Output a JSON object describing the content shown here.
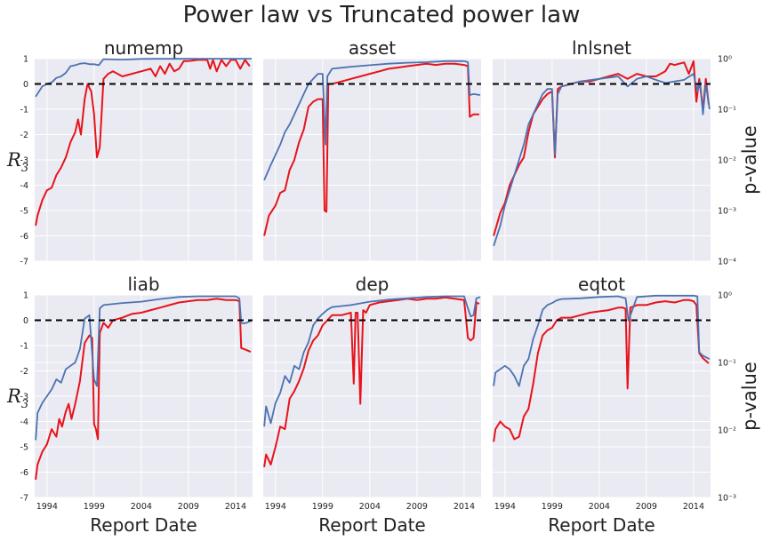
{
  "figure_title": "Power law vs Truncated power law",
  "colors": {
    "r_series": "#e8131b",
    "p_series": "#4c72b0",
    "panel_bg": "#eaeaf2",
    "grid": "#ffffff",
    "zero_line": "#000000"
  },
  "labels": {
    "left_axis": "R",
    "left_axis_sub": "3",
    "right_axis": "p-value",
    "x_axis": "Report Date"
  },
  "x_ticks": [
    "1994",
    "1999",
    "2004",
    "2009",
    "2014"
  ],
  "chart_data": [
    {
      "type": "line",
      "title": "numemp",
      "row": 0,
      "col": 0,
      "ylim": [
        -7,
        1
      ],
      "yticks": [
        "1",
        "0",
        "-1",
        "-2",
        "-3",
        "-4",
        "-5",
        "-6",
        "-7"
      ],
      "plog": [
        -4,
        0
      ],
      "pticks": [],
      "xlim": [
        1992.7,
        2015.8
      ],
      "series": [
        {
          "role": "R",
          "x": [
            1992.8,
            1993,
            1993.5,
            1994,
            1994.5,
            1995,
            1995.5,
            1996,
            1996.5,
            1997,
            1997.3,
            1997.6,
            1998,
            1998.3,
            1998.7,
            1999,
            1999.3,
            1999.6,
            2000,
            2000.5,
            2001,
            2002,
            2003,
            2004,
            2005,
            2005.5,
            2006,
            2006.5,
            2007,
            2007.5,
            2008,
            2008.5,
            2009,
            2010,
            2011,
            2011.3,
            2011.6,
            2012,
            2012.5,
            2013,
            2013.5,
            2014,
            2014.5,
            2015,
            2015.5
          ],
          "y": [
            -5.6,
            -5.2,
            -4.6,
            -4.2,
            -4.1,
            -3.6,
            -3.3,
            -2.9,
            -2.3,
            -1.9,
            -1.4,
            -2.0,
            -0.6,
            0.0,
            -0.3,
            -1.2,
            -2.9,
            -2.5,
            0.2,
            0.4,
            0.5,
            0.3,
            0.4,
            0.5,
            0.6,
            0.3,
            0.7,
            0.4,
            0.8,
            0.5,
            0.6,
            0.9,
            0.9,
            0.95,
            0.95,
            0.6,
            0.95,
            0.5,
            0.95,
            0.7,
            0.95,
            0.95,
            0.6,
            0.95,
            0.7
          ]
        },
        {
          "role": "p",
          "x": [
            1992.8,
            1993.5,
            1994,
            1994.5,
            1995,
            1995.5,
            1996,
            1996.5,
            1997,
            1997.5,
            1998,
            1998.5,
            1999,
            1999.5,
            2000,
            2002,
            2004,
            2006,
            2008,
            2010,
            2012,
            2014,
            2015.7
          ],
          "y": [
            -0.75,
            -0.55,
            -0.5,
            -0.47,
            -0.38,
            -0.35,
            -0.28,
            -0.15,
            -0.13,
            -0.1,
            -0.09,
            -0.11,
            -0.11,
            -0.13,
            -0.01,
            -0.02,
            -0.005,
            -0.004,
            -0.003,
            -0.002,
            -0.002,
            -0.002,
            -0.002
          ]
        }
      ]
    },
    {
      "type": "line",
      "title": "asset",
      "row": 0,
      "col": 1,
      "ylim": [
        -7,
        1
      ],
      "yticks": [],
      "plog": [
        -4,
        0
      ],
      "pticks": [],
      "xlim": [
        1992.7,
        2015.8
      ],
      "series": [
        {
          "role": "R",
          "x": [
            1992.8,
            1993.3,
            1994,
            1994.5,
            1995,
            1995.5,
            1996,
            1996.5,
            1997,
            1997.5,
            1998,
            1998.5,
            1999,
            1999.2,
            1999.4,
            1999.6,
            2000,
            2001,
            2002,
            2003,
            2004,
            2005,
            2006,
            2007,
            2008,
            2009,
            2010,
            2011,
            2012,
            2013,
            2014,
            2014.4,
            2014.6,
            2015,
            2015.6
          ],
          "y": [
            -6.0,
            -5.2,
            -4.8,
            -4.3,
            -4.2,
            -3.4,
            -3.0,
            -2.3,
            -1.8,
            -0.9,
            -0.7,
            -0.6,
            -0.6,
            -5.0,
            -5.05,
            0.0,
            0.0,
            0.1,
            0.2,
            0.3,
            0.4,
            0.5,
            0.6,
            0.65,
            0.7,
            0.75,
            0.8,
            0.75,
            0.8,
            0.8,
            0.75,
            0.7,
            -1.3,
            -1.2,
            -1.2
          ]
        },
        {
          "role": "p",
          "x": [
            1992.8,
            1993.5,
            1994,
            1994.5,
            1995,
            1995.5,
            1996,
            1996.5,
            1997,
            1997.5,
            1998,
            1998.5,
            1999,
            1999.3,
            1999.5,
            2000,
            2002,
            2004,
            2006,
            2008,
            2010,
            2012,
            2014,
            2014.4,
            2014.6,
            2015,
            2015.7
          ],
          "y": [
            -2.4,
            -2.1,
            -1.9,
            -1.7,
            -1.45,
            -1.3,
            -1.1,
            -0.9,
            -0.7,
            -0.5,
            -0.4,
            -0.3,
            -0.3,
            -1.7,
            -0.35,
            -0.2,
            -0.16,
            -0.13,
            -0.1,
            -0.08,
            -0.07,
            -0.05,
            -0.05,
            -0.07,
            -0.72,
            -0.7,
            -0.72
          ]
        }
      ]
    },
    {
      "type": "line",
      "title": "lnlsnet",
      "row": 0,
      "col": 2,
      "ylim": [
        -7,
        1
      ],
      "yticks": [],
      "plog": [
        -4,
        0
      ],
      "pticks": [
        "10⁰",
        "10⁻¹",
        "10⁻²",
        "10⁻³",
        "10⁻⁴"
      ],
      "xlim": [
        1992.7,
        2015.8
      ],
      "series": [
        {
          "role": "R",
          "x": [
            1992.8,
            1993.5,
            1994,
            1994.5,
            1995,
            1995.5,
            1996,
            1996.5,
            1997,
            1997.5,
            1998,
            1998.5,
            1999,
            1999.3,
            1999.6,
            2000,
            2001,
            2002,
            2003,
            2004,
            2005,
            2006,
            2007,
            2008,
            2009,
            2010,
            2011,
            2011.5,
            2012,
            2012.5,
            2013,
            2013.5,
            2014,
            2014.3,
            2014.6,
            2015,
            2015.3,
            2015.6
          ],
          "y": [
            -6.0,
            -5.1,
            -4.7,
            -4.0,
            -3.6,
            -3.2,
            -2.9,
            -1.9,
            -1.2,
            -0.9,
            -0.6,
            -0.4,
            -0.3,
            -2.9,
            -0.2,
            -0.1,
            0.0,
            0.1,
            0.1,
            0.2,
            0.3,
            0.4,
            0.2,
            0.4,
            0.3,
            0.3,
            0.5,
            0.8,
            0.75,
            0.8,
            0.85,
            0.4,
            0.9,
            -0.7,
            0.2,
            -1.0,
            0.2,
            -0.8
          ]
        },
        {
          "role": "p",
          "x": [
            1992.8,
            1993.5,
            1994,
            1994.5,
            1995,
            1995.5,
            1996,
            1996.5,
            1997,
            1997.5,
            1998,
            1998.5,
            1999,
            1999.3,
            1999.6,
            2000,
            2002,
            2004,
            2006,
            2007,
            2008,
            2009,
            2010,
            2011,
            2012,
            2013,
            2014,
            2014.4,
            2014.7,
            2015,
            2015.3,
            2015.7
          ],
          "y": [
            -3.7,
            -3.3,
            -2.9,
            -2.6,
            -2.3,
            -2.0,
            -1.7,
            -1.3,
            -1.1,
            -0.9,
            -0.7,
            -0.6,
            -0.6,
            -1.9,
            -0.7,
            -0.55,
            -0.45,
            -0.4,
            -0.35,
            -0.55,
            -0.4,
            -0.35,
            -0.42,
            -0.48,
            -0.45,
            -0.42,
            -0.3,
            -0.65,
            -0.45,
            -1.1,
            -0.5,
            -1.0
          ]
        }
      ]
    },
    {
      "type": "line",
      "title": "liab",
      "row": 1,
      "col": 0,
      "ylim": [
        -7,
        1
      ],
      "yticks": [
        "1",
        "0",
        "-1",
        "-2",
        "-3",
        "-4",
        "-5",
        "-6",
        "-7"
      ],
      "plog": [
        -3,
        0
      ],
      "pticks": [],
      "xlim": [
        1992.7,
        2015.8
      ],
      "series": [
        {
          "role": "R",
          "x": [
            1992.8,
            1993,
            1993.5,
            1994,
            1994.5,
            1995,
            1995.3,
            1995.6,
            1996,
            1996.3,
            1996.6,
            1997,
            1997.5,
            1998,
            1998.5,
            1998.8,
            1999,
            1999.2,
            1999.4,
            1999.6,
            2000,
            2000.5,
            2001,
            2002,
            2003,
            2004,
            2005,
            2006,
            2007,
            2008,
            2009,
            2010,
            2011,
            2012,
            2013,
            2014,
            2014.4,
            2014.6,
            2015,
            2015.6
          ],
          "y": [
            -6.3,
            -5.7,
            -5.2,
            -4.9,
            -4.3,
            -4.6,
            -3.9,
            -4.2,
            -3.6,
            -3.3,
            -3.9,
            -3.3,
            -2.4,
            -0.9,
            -0.6,
            -0.7,
            -4.1,
            -4.3,
            -4.7,
            -0.5,
            -0.1,
            -0.3,
            0.0,
            0.1,
            0.25,
            0.3,
            0.4,
            0.5,
            0.6,
            0.7,
            0.75,
            0.8,
            0.8,
            0.85,
            0.8,
            0.8,
            0.75,
            -1.1,
            -1.15,
            -1.25
          ]
        },
        {
          "role": "p",
          "x": [
            1992.8,
            1993,
            1993.5,
            1994,
            1994.5,
            1995,
            1995.5,
            1996,
            1996.5,
            1997,
            1997.5,
            1998,
            1998.5,
            1999,
            1999.3,
            1999.6,
            2000,
            2002,
            2004,
            2006,
            2008,
            2010,
            2012,
            2014,
            2014.4,
            2014.6,
            2015,
            2015.7
          ],
          "y": [
            -2.15,
            -1.75,
            -1.6,
            -1.5,
            -1.4,
            -1.25,
            -1.3,
            -1.1,
            -1.05,
            -1.0,
            -0.8,
            -0.35,
            -0.3,
            -1.25,
            -1.35,
            -0.2,
            -0.15,
            -0.12,
            -0.1,
            -0.06,
            -0.03,
            -0.02,
            -0.02,
            -0.02,
            -0.05,
            -0.42,
            -0.42,
            -0.38
          ]
        }
      ]
    },
    {
      "type": "line",
      "title": "dep",
      "row": 1,
      "col": 1,
      "ylim": [
        -7,
        1
      ],
      "yticks": [],
      "plog": [
        -3,
        0
      ],
      "pticks": [],
      "xlim": [
        1992.7,
        2015.8
      ],
      "series": [
        {
          "role": "R",
          "x": [
            1992.8,
            1993,
            1993.5,
            1994,
            1994.5,
            1995,
            1995.5,
            1996,
            1996.5,
            1997,
            1997.5,
            1998,
            1998.5,
            1999,
            1999.5,
            2000,
            2001,
            2002,
            2002.3,
            2002.5,
            2002.7,
            2003,
            2003.3,
            2003.6,
            2004,
            2005,
            2006,
            2007,
            2008,
            2009,
            2010,
            2011,
            2012,
            2013,
            2014,
            2014.4,
            2014.7,
            2015,
            2015.3,
            2015.6
          ],
          "y": [
            -5.8,
            -5.3,
            -5.7,
            -5.0,
            -4.2,
            -4.3,
            -3.1,
            -2.8,
            -2.4,
            -1.9,
            -1.2,
            -0.8,
            -0.6,
            -0.2,
            0.0,
            0.2,
            0.2,
            0.3,
            -2.5,
            0.3,
            0.3,
            -3.3,
            0.4,
            0.3,
            0.6,
            0.7,
            0.75,
            0.8,
            0.85,
            0.8,
            0.85,
            0.85,
            0.9,
            0.85,
            0.8,
            -0.7,
            -0.8,
            -0.7,
            0.7,
            0.65
          ]
        },
        {
          "role": "p",
          "x": [
            1992.8,
            1993,
            1993.5,
            1994,
            1994.5,
            1995,
            1995.5,
            1996,
            1996.5,
            1997,
            1997.5,
            1998,
            1998.5,
            1999,
            1999.5,
            2000,
            2002,
            2004,
            2006,
            2008,
            2010,
            2012,
            2014,
            2014.4,
            2014.7,
            2015,
            2015.3,
            2015.7
          ],
          "y": [
            -1.95,
            -1.65,
            -1.9,
            -1.6,
            -1.45,
            -1.2,
            -1.3,
            -1.05,
            -1.1,
            -0.85,
            -0.7,
            -0.45,
            -0.35,
            -0.28,
            -0.22,
            -0.18,
            -0.15,
            -0.1,
            -0.07,
            -0.05,
            -0.03,
            -0.02,
            -0.02,
            -0.2,
            -0.32,
            -0.3,
            -0.05,
            -0.03
          ]
        }
      ]
    },
    {
      "type": "line",
      "title": "eqtot",
      "row": 1,
      "col": 2,
      "ylim": [
        -7,
        1
      ],
      "yticks": [],
      "plog": [
        -3,
        0
      ],
      "pticks": [
        "10⁰",
        "10⁻¹",
        "10⁻²",
        "10⁻³"
      ],
      "xlim": [
        1992.7,
        2015.8
      ],
      "series": [
        {
          "role": "R",
          "x": [
            1992.8,
            1993,
            1993.5,
            1994,
            1994.5,
            1995,
            1995.5,
            1996,
            1996.5,
            1997,
            1997.5,
            1998,
            1998.5,
            1999,
            1999.5,
            2000,
            2001,
            2002,
            2003,
            2004,
            2005,
            2006,
            2006.5,
            2006.8,
            2007,
            2007.3,
            2008,
            2009,
            2010,
            2011,
            2012,
            2013,
            2013.5,
            2014,
            2014.3,
            2014.6,
            2015,
            2015.6
          ],
          "y": [
            -4.8,
            -4.3,
            -4.0,
            -4.2,
            -4.3,
            -4.7,
            -4.6,
            -3.8,
            -3.5,
            -2.5,
            -1.3,
            -0.6,
            -0.4,
            -0.3,
            0.0,
            0.1,
            0.1,
            0.2,
            0.3,
            0.35,
            0.4,
            0.5,
            0.5,
            0.45,
            -2.7,
            0.5,
            0.6,
            0.6,
            0.7,
            0.75,
            0.7,
            0.8,
            0.8,
            0.75,
            0.6,
            -1.3,
            -1.5,
            -1.7
          ]
        },
        {
          "role": "p",
          "x": [
            1992.8,
            1993,
            1993.5,
            1994,
            1994.5,
            1995,
            1995.5,
            1996,
            1996.5,
            1997,
            1997.5,
            1998,
            1998.5,
            1999,
            1999.5,
            2000,
            2002,
            2004,
            2006,
            2006.8,
            2007.1,
            2008,
            2010,
            2012,
            2014,
            2014.4,
            2014.6,
            2015,
            2015.7
          ],
          "y": [
            -1.35,
            -1.15,
            -1.1,
            -1.05,
            -1.1,
            -1.2,
            -1.35,
            -1.05,
            -0.95,
            -0.65,
            -0.45,
            -0.22,
            -0.15,
            -0.12,
            -0.08,
            -0.06,
            -0.05,
            -0.03,
            -0.02,
            -0.05,
            -0.38,
            -0.03,
            -0.01,
            -0.01,
            -0.01,
            -0.02,
            -0.85,
            -0.9,
            -0.95
          ]
        }
      ]
    }
  ]
}
